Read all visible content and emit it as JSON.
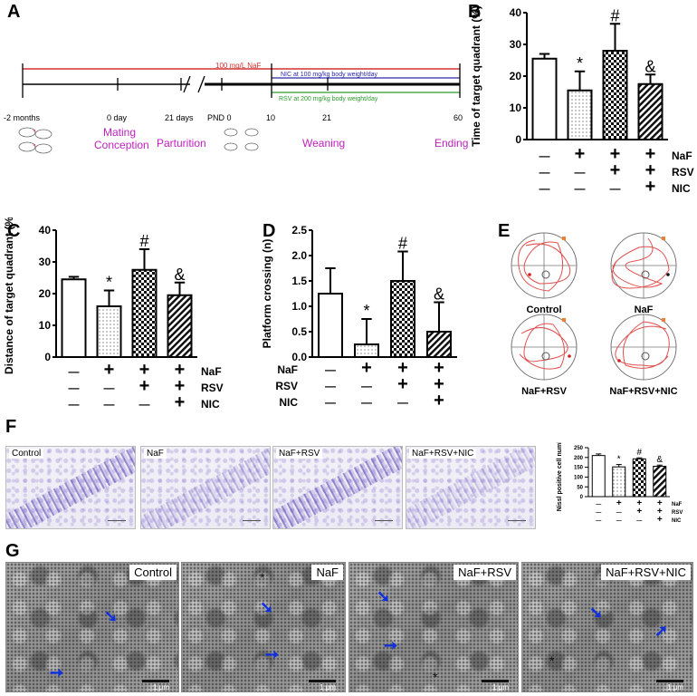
{
  "panels": {
    "A": "A",
    "B": "B",
    "C": "C",
    "D": "D",
    "E": "E",
    "F": "F",
    "G": "G"
  },
  "timeline": {
    "naf_label": "100 mg/L NaF",
    "nic_label": "NIC at 100 mg/kg body weight/day",
    "rsv_label": "RSV at 200 mg/kg body weight/day",
    "ticks": [
      "-2 months",
      "0 day",
      "21 days",
      "PND 0",
      "10",
      "21",
      "60"
    ],
    "events": [
      "Mating",
      "Conception",
      "Parturition",
      "Weaning",
      "Ending"
    ],
    "colors": {
      "naf": "#d23232",
      "nic": "#2a2aa8",
      "rsv": "#2a9a2a",
      "event": "#c020c0"
    }
  },
  "groups": {
    "row_labels": [
      "NaF",
      "RSV",
      "NIC"
    ],
    "minus": "—",
    "plus": "+"
  },
  "chart_data": [
    {
      "type": "bar",
      "panel": "B",
      "ylabel": "Time of target quadrant (%)",
      "ylim": [
        0,
        40
      ],
      "yticks": [
        0,
        10,
        20,
        30,
        40
      ],
      "categories": [
        "Control",
        "NaF",
        "NaF+RSV",
        "NaF+RSV+NIC"
      ],
      "values": [
        25.5,
        15.5,
        28,
        17.5
      ],
      "errors": [
        1.5,
        6,
        8.5,
        3
      ],
      "annotations": [
        "",
        "*",
        "#",
        "&"
      ]
    },
    {
      "type": "bar",
      "panel": "C",
      "ylabel": "Distance of target quadrant (%)",
      "ylim": [
        0,
        40
      ],
      "yticks": [
        0,
        10,
        20,
        30,
        40
      ],
      "categories": [
        "Control",
        "NaF",
        "NaF+RSV",
        "NaF+RSV+NIC"
      ],
      "values": [
        24.5,
        16,
        27.5,
        19.5
      ],
      "errors": [
        0.8,
        5,
        6.5,
        4
      ],
      "annotations": [
        "",
        "*",
        "#",
        "&"
      ]
    },
    {
      "type": "bar",
      "panel": "D",
      "ylabel": "Platform crossing (n)",
      "ylim": [
        0,
        2.5
      ],
      "yticks": [
        0.0,
        0.5,
        1.0,
        1.5,
        2.0,
        2.5
      ],
      "categories": [
        "Control",
        "NaF",
        "NaF+RSV",
        "NaF+RSV+NIC"
      ],
      "values": [
        1.25,
        0.25,
        1.5,
        0.5
      ],
      "errors": [
        0.5,
        0.5,
        0.58,
        0.58
      ],
      "annotations": [
        "",
        "*",
        "#",
        "&"
      ]
    },
    {
      "type": "bar",
      "panel": "F",
      "ylabel": "Nissl positive cell number",
      "ylim": [
        0,
        250
      ],
      "yticks": [
        0,
        50,
        100,
        150,
        200,
        250
      ],
      "categories": [
        "Control",
        "NaF",
        "NaF+RSV",
        "NaF+RSV+NIC"
      ],
      "values": [
        210,
        152,
        193,
        155
      ],
      "errors": [
        8,
        12,
        5,
        6
      ],
      "annotations": [
        "",
        "*",
        "#",
        "&"
      ]
    }
  ],
  "maze": {
    "labels": [
      "Control",
      "NaF",
      "NaF+RSV",
      "NaF+RSV+NIC"
    ]
  },
  "nissl": {
    "labels": [
      "Control",
      "NaF",
      "NaF+RSV",
      "NaF+RSV+NIC"
    ]
  },
  "em": {
    "labels": [
      "Control",
      "NaF",
      "NaF+RSV",
      "NaF+RSV+NIC"
    ],
    "scale": "1 μm"
  }
}
